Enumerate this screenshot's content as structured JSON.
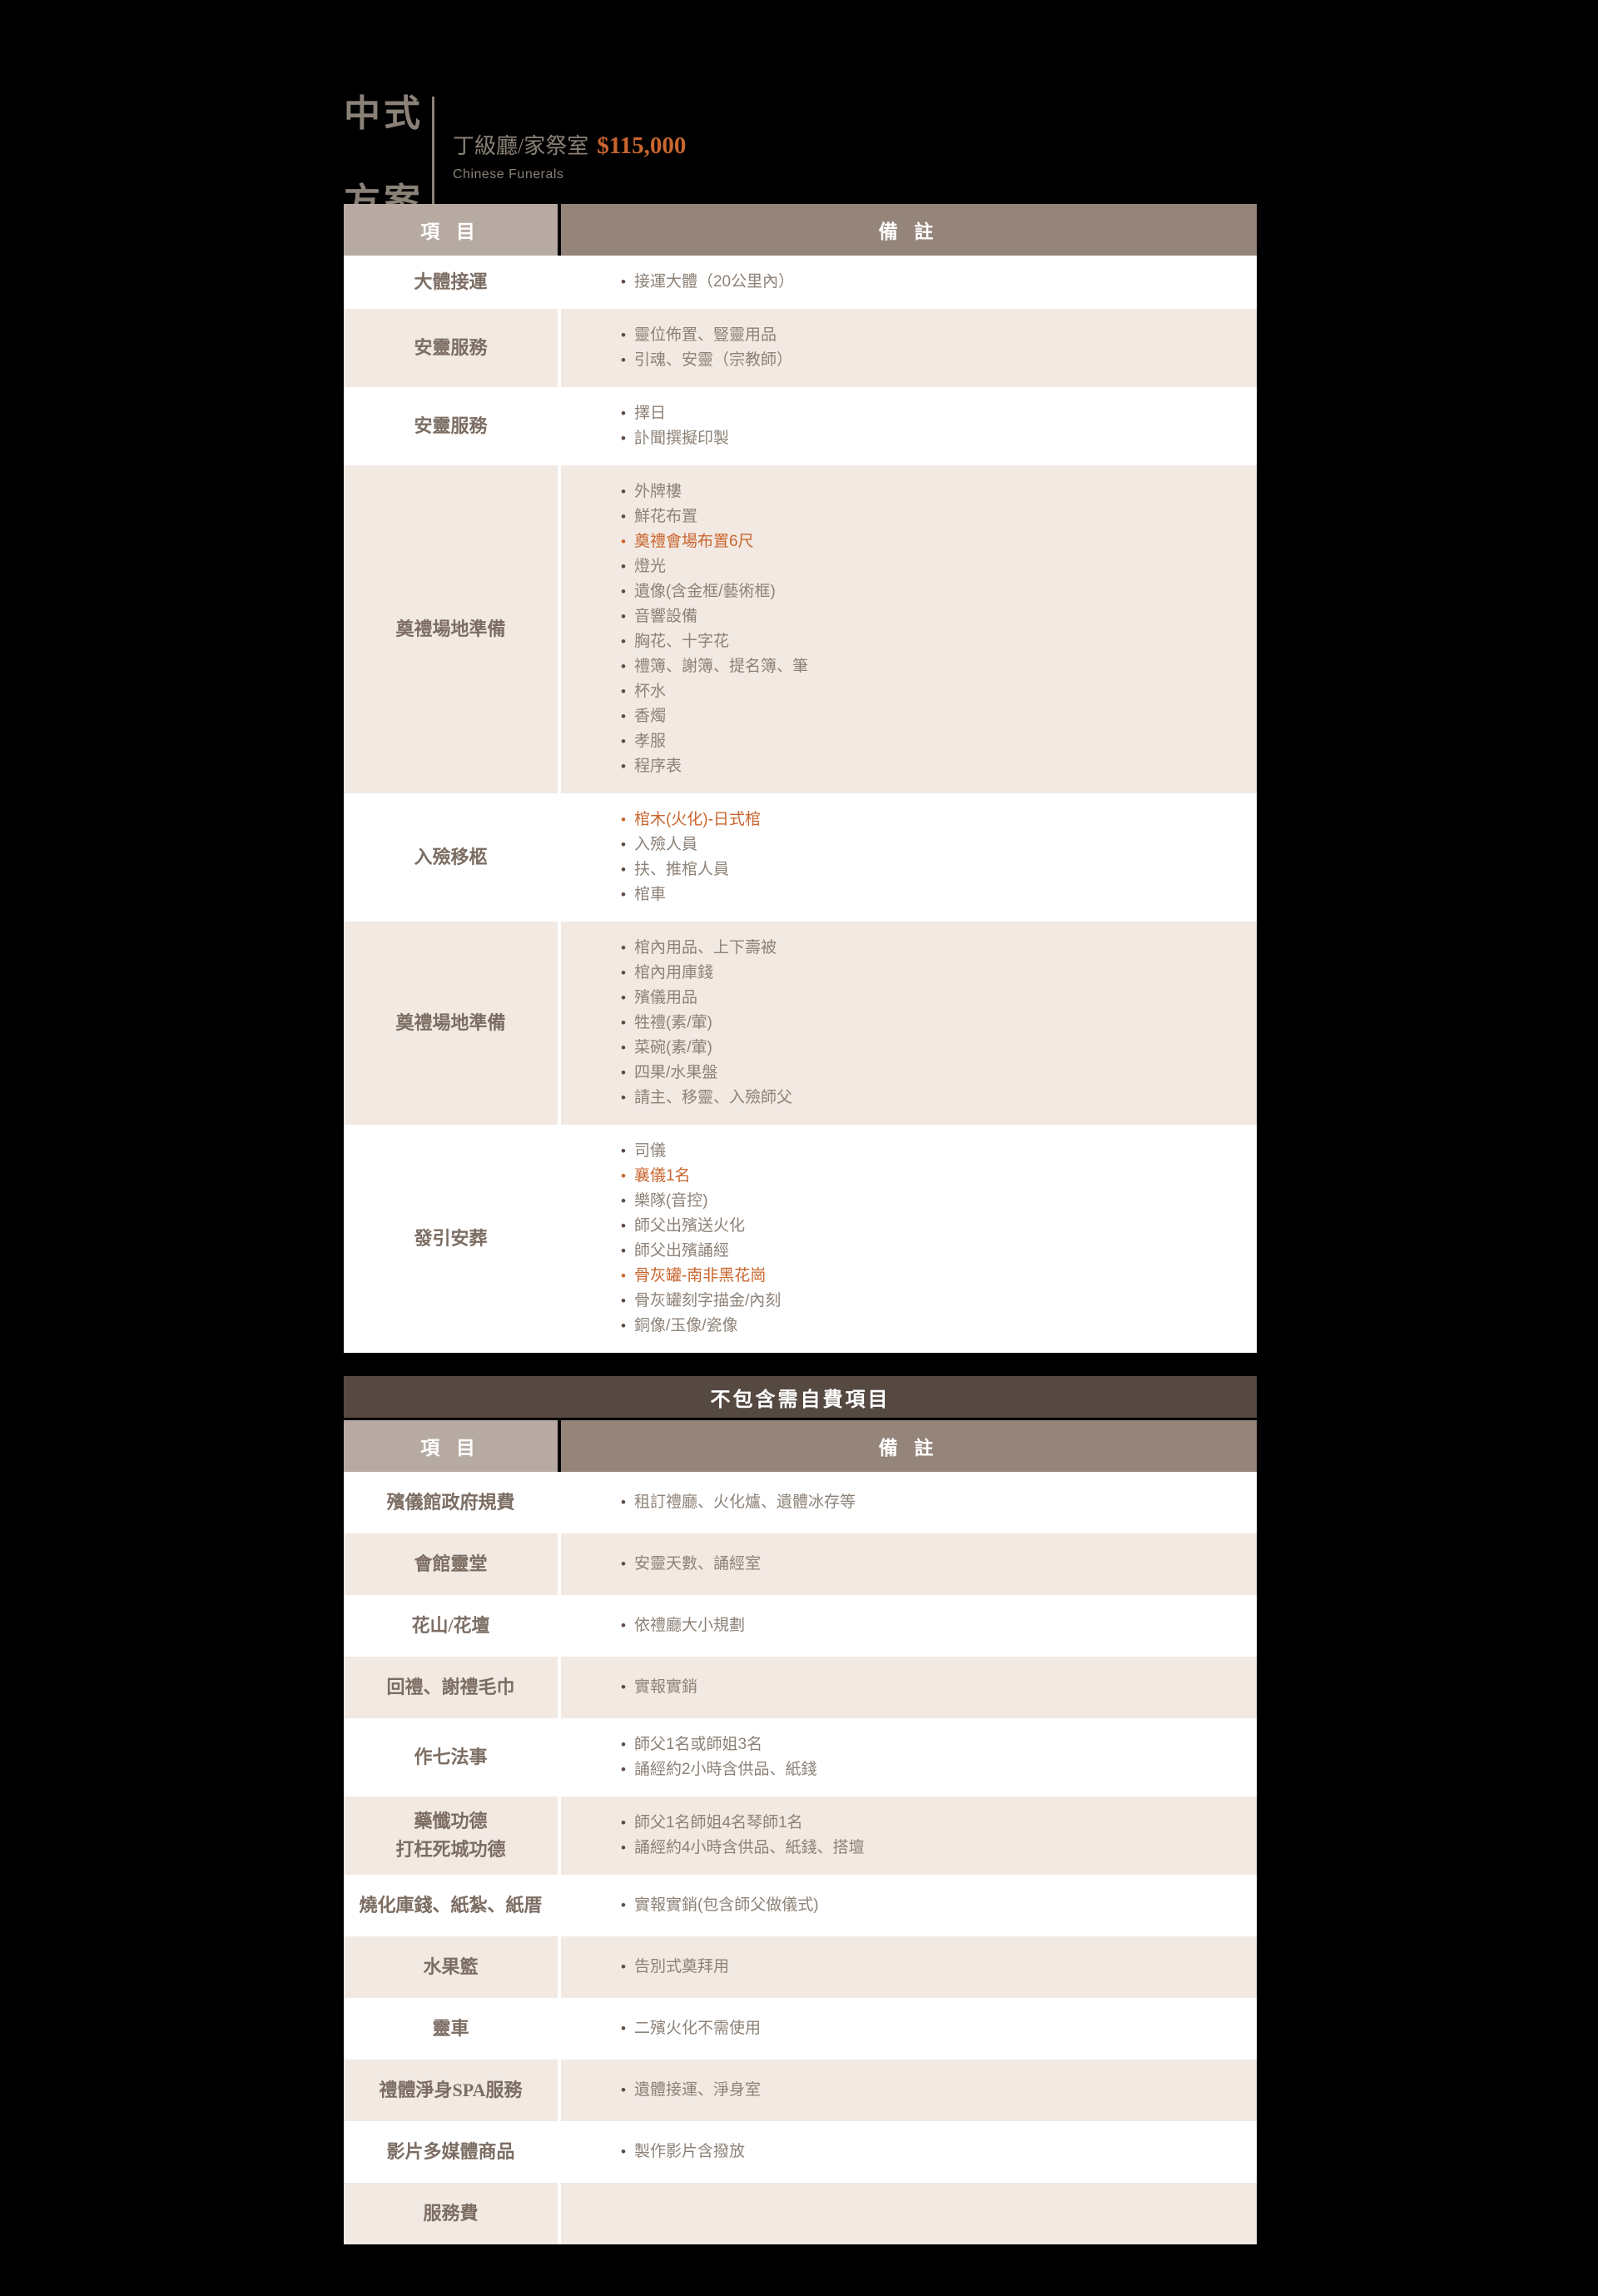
{
  "brand": {
    "title_zh_line1": "中式",
    "title_zh_line2": "方案",
    "plan_name": "丁級廳/家祭室",
    "plan_price": "$115,000",
    "subtitle_en": "Chinese Funerals"
  },
  "columns": {
    "item": "項 目",
    "note": "備 註"
  },
  "colors": {
    "accent_orange": "#c9662f",
    "header_left_bg": "#b7aaa3",
    "header_right_bg": "#95847a",
    "titlebar_bg": "#554941",
    "row_alt_bg": "#f2e9e3",
    "label_text": "#7c6d63",
    "note_text": "#8d8278",
    "brand_gray": "#8a8177",
    "page_bg": "#000000"
  },
  "table1": {
    "rows": [
      {
        "label_lines": [
          "大體接運"
        ],
        "notes": [
          {
            "text": "接運大體（20公里內）"
          }
        ]
      },
      {
        "label_lines": [
          "安靈服務"
        ],
        "notes": [
          {
            "text": "靈位佈置、豎靈用品"
          },
          {
            "text": "引魂、安靈（宗教師）"
          }
        ]
      },
      {
        "label_lines": [
          "安靈服務"
        ],
        "notes": [
          {
            "text": "擇日"
          },
          {
            "text": "訃聞撰擬印製"
          }
        ]
      },
      {
        "label_lines": [
          "奠禮場地準備"
        ],
        "notes": [
          {
            "text": "外牌樓"
          },
          {
            "text": "鮮花布置"
          },
          {
            "text": "奠禮會場布置6尺",
            "accent": true
          },
          {
            "text": "燈光"
          },
          {
            "text": "遺像(含金框/藝術框)"
          },
          {
            "text": "音響設備"
          },
          {
            "text": "胸花、十字花"
          },
          {
            "text": "禮簿、謝簿、提名簿、筆"
          },
          {
            "text": "杯水"
          },
          {
            "text": "香燭"
          },
          {
            "text": "孝服"
          },
          {
            "text": "程序表"
          }
        ]
      },
      {
        "label_lines": [
          "入殮移柩"
        ],
        "notes": [
          {
            "text": "棺木(火化)-日式棺",
            "accent": true
          },
          {
            "text": "入殮人員"
          },
          {
            "text": "扶、推棺人員"
          },
          {
            "text": "棺車"
          }
        ]
      },
      {
        "label_lines": [
          "奠禮場地準備"
        ],
        "notes": [
          {
            "text": "棺內用品、上下壽被"
          },
          {
            "text": "棺內用庫錢"
          },
          {
            "text": "殯儀用品"
          },
          {
            "text": "牲禮(素/葷)"
          },
          {
            "text": "菜碗(素/葷)"
          },
          {
            "text": "四果/水果盤"
          },
          {
            "text": "請主、移靈、入殮師父"
          }
        ]
      },
      {
        "label_lines": [
          "發引安葬"
        ],
        "notes": [
          {
            "text": "司儀"
          },
          {
            "text": "襄儀1名",
            "accent": true
          },
          {
            "text": "樂隊(音控)"
          },
          {
            "text": "師父出殯送火化"
          },
          {
            "text": "師父出殯誦經"
          },
          {
            "text": "骨灰罐-南非黑花崗",
            "accent": true
          },
          {
            "text": "骨灰罐刻字描金/內刻"
          },
          {
            "text": "銅像/玉像/瓷像"
          }
        ]
      }
    ]
  },
  "table2": {
    "title": "不包含需自費項目",
    "rows": [
      {
        "label_lines": [
          "殯儀館政府規費"
        ],
        "notes": [
          {
            "text": "租訂禮廳、火化爐、遺體冰存等"
          }
        ]
      },
      {
        "label_lines": [
          "會館靈堂"
        ],
        "notes": [
          {
            "text": "安靈天數、誦經室"
          }
        ]
      },
      {
        "label_lines": [
          "花山/花壇"
        ],
        "notes": [
          {
            "text": "依禮廳大小規劃"
          }
        ]
      },
      {
        "label_lines": [
          "回禮、謝禮毛巾"
        ],
        "notes": [
          {
            "text": "實報實銷"
          }
        ]
      },
      {
        "label_lines": [
          "作七法事"
        ],
        "notes": [
          {
            "text": "師父1名或師姐3名"
          },
          {
            "text": "誦經約2小時含供品、紙錢"
          }
        ]
      },
      {
        "label_lines": [
          "藥懺功德",
          "打枉死城功德"
        ],
        "notes": [
          {
            "text": "師父1名師姐4名琴師1名"
          },
          {
            "text": "誦經約4小時含供品、紙錢、搭壇"
          }
        ]
      },
      {
        "label_lines": [
          "燒化庫錢、紙紮、紙厝"
        ],
        "notes": [
          {
            "text": "實報實銷(包含師父做儀式)"
          }
        ]
      },
      {
        "label_lines": [
          "水果籃"
        ],
        "notes": [
          {
            "text": "告別式奠拜用"
          }
        ]
      },
      {
        "label_lines": [
          "靈車"
        ],
        "notes": [
          {
            "text": "二殯火化不需使用"
          }
        ]
      },
      {
        "label_lines": [
          "禮體淨身SPA服務"
        ],
        "notes": [
          {
            "text": "遺體接運、淨身室"
          }
        ]
      },
      {
        "label_lines": [
          "影片多媒體商品"
        ],
        "notes": [
          {
            "text": "製作影片含撥放"
          }
        ]
      },
      {
        "label_lines": [
          "服務費"
        ],
        "notes": []
      }
    ]
  }
}
